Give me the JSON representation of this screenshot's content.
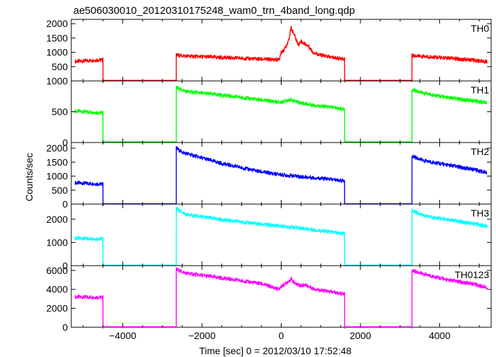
{
  "chart_data": {
    "type": "line",
    "title": "ae506030010_20120310175248_wam0_trn_4band_long.qdp",
    "xlabel": "Time [sec] 0 = 2012/03/10 17:52:48",
    "ylabel": "Counts/sec",
    "xlim": [
      -5300,
      5300
    ],
    "x_ticks": [
      -4000,
      -2000,
      0,
      2000,
      4000
    ],
    "grid": false,
    "panels": [
      {
        "name": "TH0",
        "color": "#ff0000",
        "ylim": [
          0,
          2150
        ],
        "y_ticks": [
          500,
          1000,
          1500,
          2000
        ],
        "x": [
          -5200,
          -4500,
          -4499,
          -2650,
          -2649,
          -2400,
          -1500,
          -500,
          -50,
          0,
          50,
          100,
          150,
          200,
          250,
          300,
          350,
          400,
          450,
          500,
          550,
          600,
          700,
          800,
          1000,
          1200,
          1400,
          1600,
          1601,
          3300,
          3301,
          3600,
          4200,
          4800,
          5200
        ],
        "values": [
          680,
          740,
          20,
          20,
          900,
          870,
          820,
          760,
          740,
          1000,
          1050,
          1150,
          1300,
          1500,
          1850,
          1700,
          1550,
          1350,
          1280,
          1400,
          1320,
          1300,
          1200,
          1000,
          900,
          840,
          800,
          760,
          20,
          20,
          890,
          850,
          800,
          730,
          680
        ]
      },
      {
        "name": "TH1",
        "color": "#00ff00",
        "ylim": [
          0,
          1000
        ],
        "y_ticks": [
          0,
          500,
          1000
        ],
        "x": [
          -5200,
          -4500,
          -4499,
          -2650,
          -2649,
          -2400,
          -1500,
          -500,
          0,
          200,
          400,
          700,
          1000,
          1300,
          1600,
          1601,
          3300,
          3301,
          3600,
          4200,
          4800,
          5200
        ],
        "values": [
          510,
          480,
          10,
          10,
          890,
          830,
          770,
          690,
          650,
          700,
          660,
          620,
          590,
          570,
          540,
          10,
          10,
          860,
          800,
          730,
          680,
          650
        ]
      },
      {
        "name": "TH2",
        "color": "#0000ff",
        "ylim": [
          0,
          2200
        ],
        "y_ticks": [
          0,
          500,
          1000,
          1500,
          2000
        ],
        "x": [
          -5200,
          -4500,
          -4499,
          -2650,
          -2649,
          -2500,
          -2000,
          -1500,
          -1000,
          -500,
          0,
          500,
          1000,
          1600,
          1601,
          3300,
          3301,
          3600,
          4200,
          4800,
          5200
        ],
        "values": [
          760,
          710,
          10,
          10,
          2000,
          1850,
          1650,
          1450,
          1300,
          1150,
          1050,
          980,
          920,
          830,
          10,
          10,
          1720,
          1550,
          1400,
          1250,
          1130
        ]
      },
      {
        "name": "TH3",
        "color": "#00ffff",
        "ylim": [
          0,
          2650
        ],
        "y_ticks": [
          0,
          1000,
          2000
        ],
        "x": [
          -5200,
          -4500,
          -4499,
          -2650,
          -2649,
          -2400,
          -1500,
          -500,
          0,
          500,
          1000,
          1600,
          1601,
          3300,
          3301,
          3600,
          4200,
          4800,
          5200
        ],
        "values": [
          1180,
          1150,
          20,
          20,
          2450,
          2200,
          1980,
          1780,
          1700,
          1620,
          1500,
          1380,
          20,
          20,
          2380,
          2150,
          1980,
          1820,
          1700
        ]
      },
      {
        "name": "TH0123",
        "color": "#ff00ff",
        "ylim": [
          0,
          6500
        ],
        "y_ticks": [
          0,
          2000,
          4000,
          6000
        ],
        "x": [
          -5200,
          -4500,
          -4499,
          -2650,
          -2649,
          -2400,
          -1500,
          -500,
          -50,
          0,
          100,
          250,
          350,
          500,
          600,
          800,
          1000,
          1300,
          1600,
          1601,
          3300,
          3301,
          3600,
          4200,
          4800,
          5200
        ],
        "values": [
          3200,
          3150,
          50,
          50,
          6100,
          5700,
          5200,
          4600,
          4000,
          4300,
          4600,
          5100,
          4600,
          4400,
          4500,
          4100,
          3900,
          3700,
          3500,
          50,
          50,
          6000,
          5600,
          5000,
          4600,
          4200
        ]
      }
    ]
  }
}
